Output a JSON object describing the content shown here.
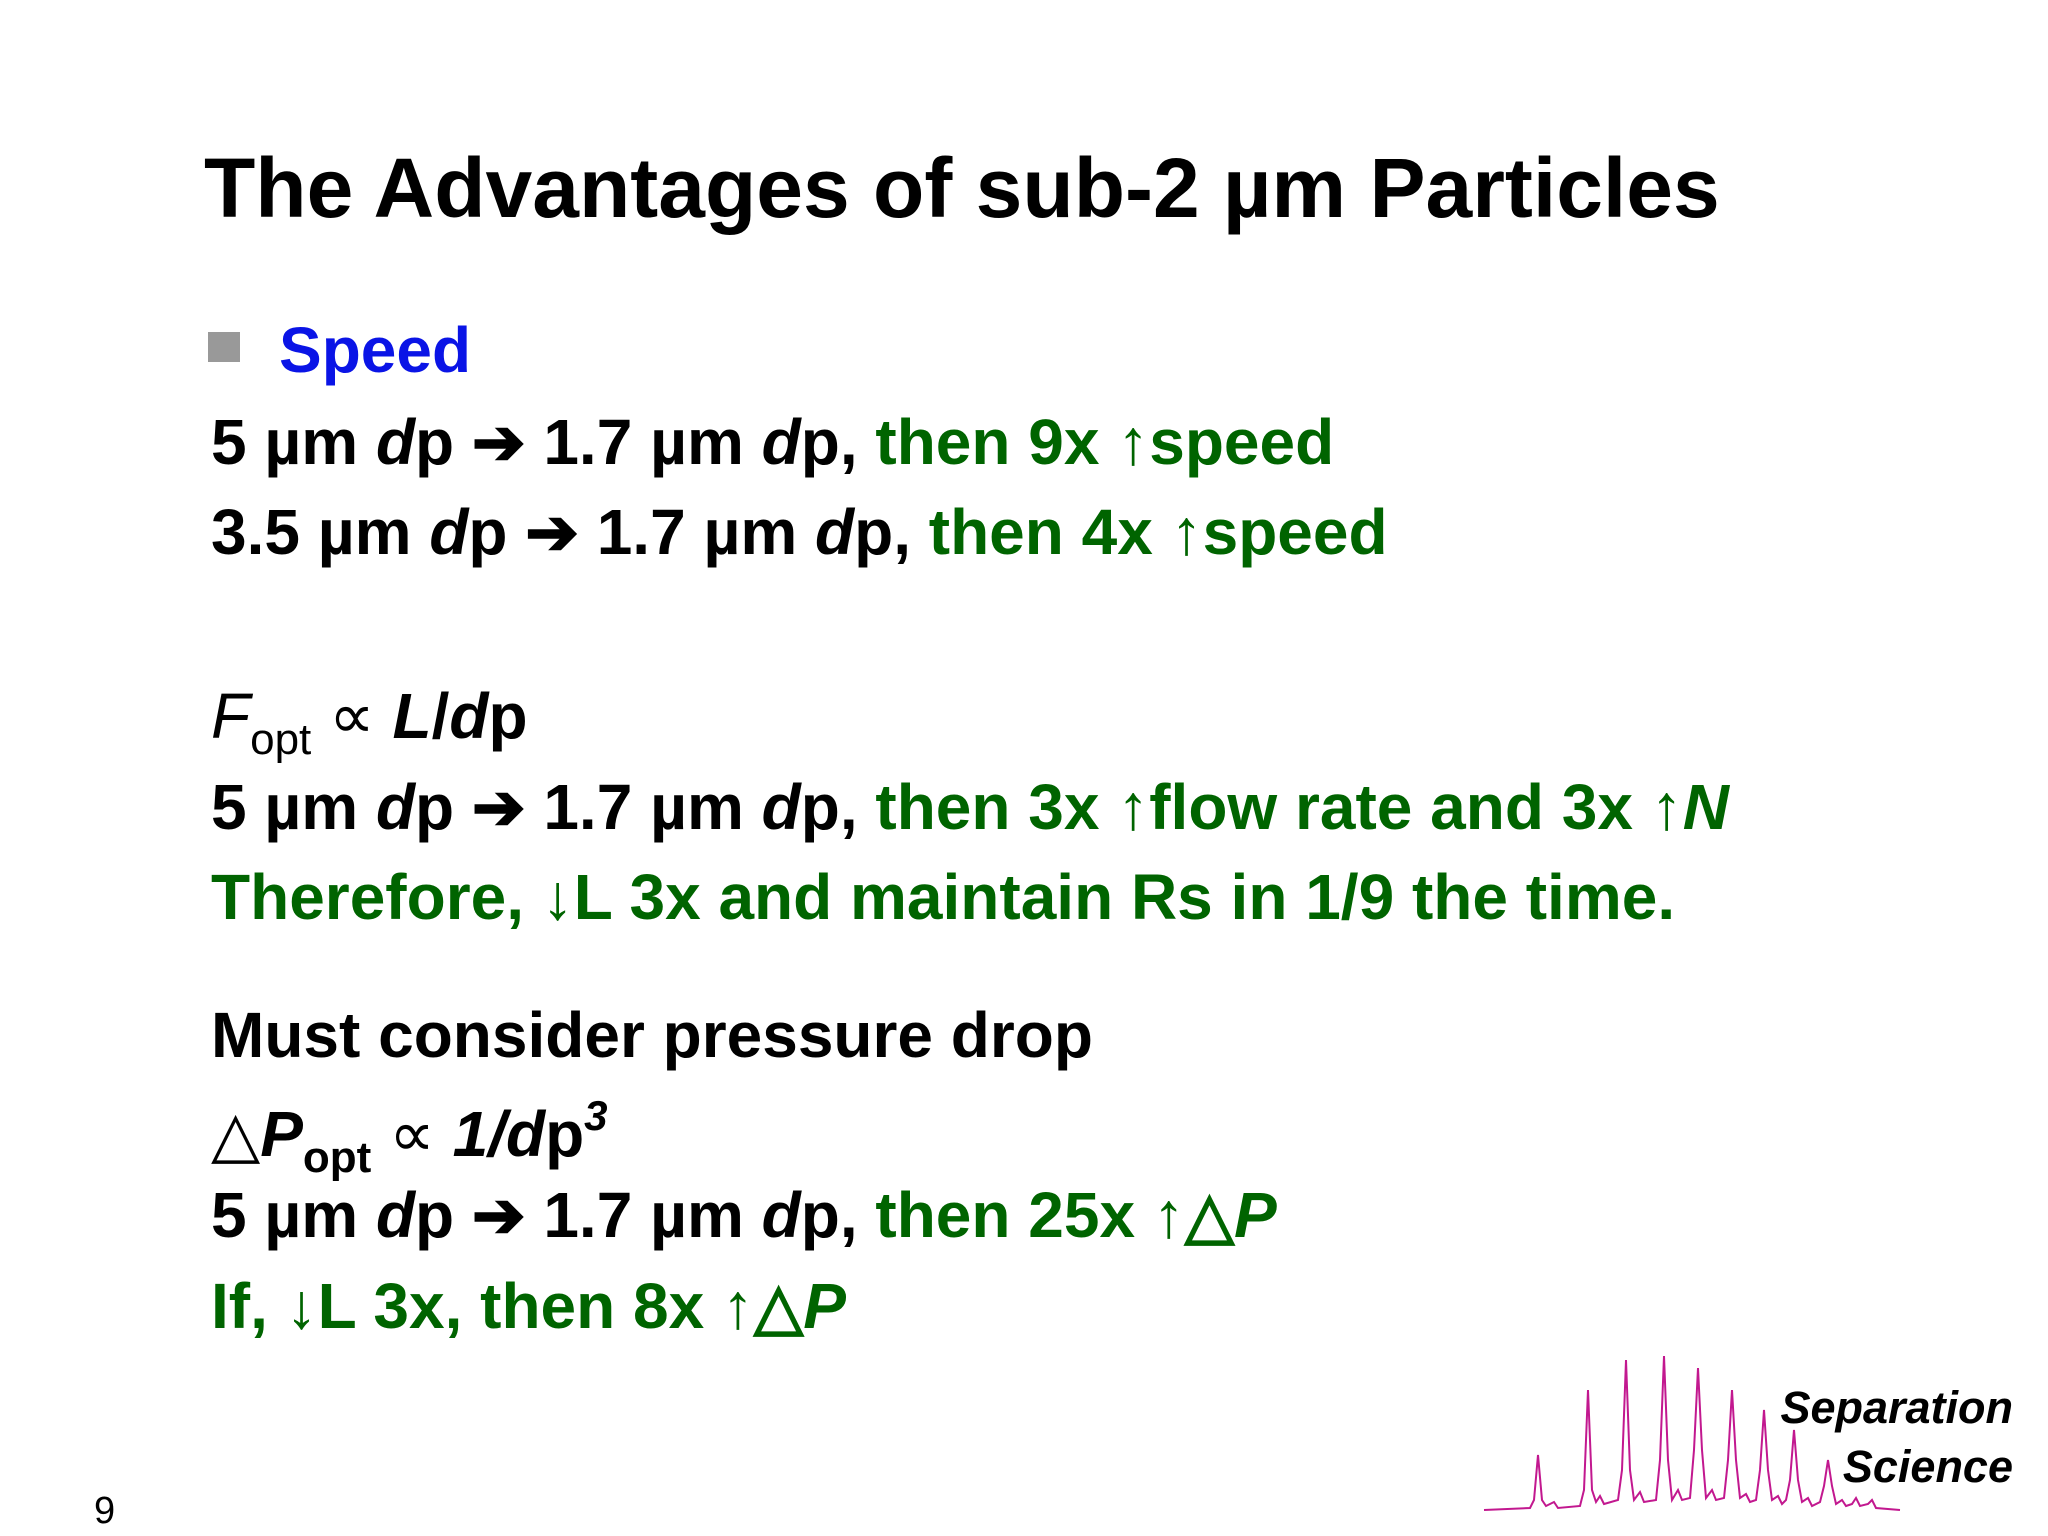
{
  "title": "The Advantages of sub-2 µm Particles",
  "bullet_heading": "Speed",
  "lines": [
    [
      "5 µm ",
      "d",
      "p ➔ 1.7 µm ",
      "d",
      "p, ",
      "then 9x ↑speed"
    ],
    [
      "3.5 µm ",
      "d",
      "p ➔ 1.7 µm ",
      "d",
      "p, ",
      "then 4x ↑speed"
    ],
    [
      "F",
      "opt",
      " ∝ ",
      "L",
      "/",
      "d",
      "p"
    ],
    [
      "5 µm ",
      "d",
      "p ➔ 1.7 µm ",
      "d",
      "p, ",
      "then 3x ↑flow rate and 3x ↑",
      "N"
    ],
    [
      "Therefore, ↓L 3x and maintain Rs in 1/9 the time."
    ],
    [
      "Must consider pressure drop"
    ],
    [
      "△",
      "P",
      "opt",
      " ∝ ",
      "1/",
      "d",
      "p",
      "3"
    ],
    [
      "5 µm ",
      "d",
      "p ➔ 1.7 µm ",
      "d",
      "p, ",
      "then 25x ↑△",
      "P"
    ],
    [
      "If, ↓L 3x, then 8x ↑△",
      "P"
    ]
  ],
  "logo": [
    "Separation",
    "Science"
  ],
  "page_number": "9"
}
